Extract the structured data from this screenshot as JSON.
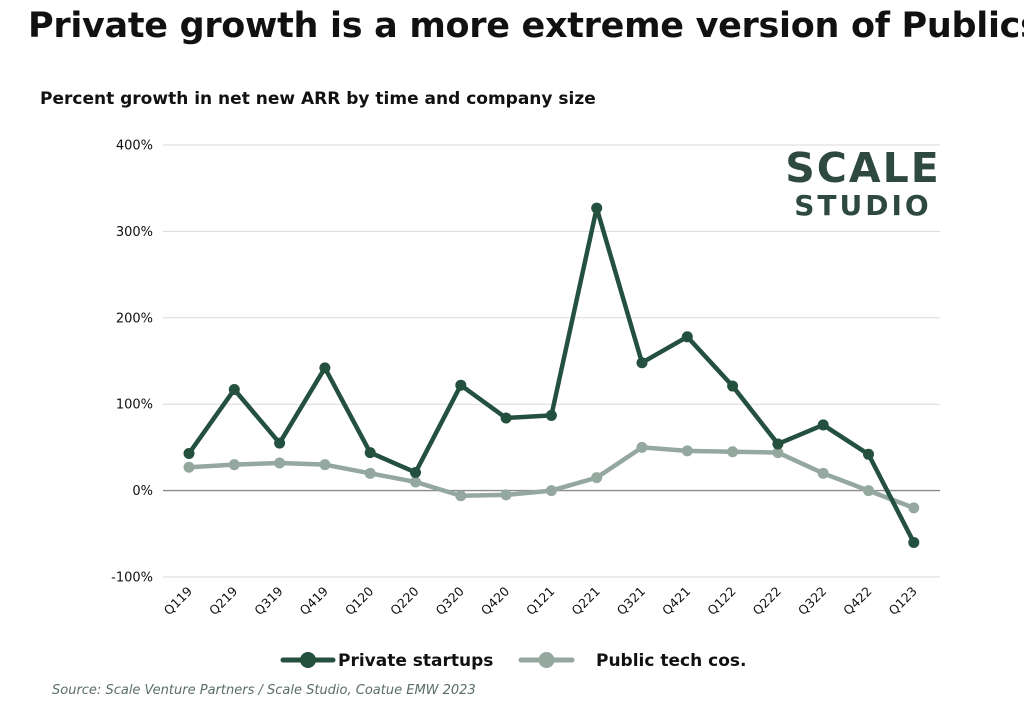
{
  "header": {
    "title": "Private growth is a more extreme version of Publics",
    "subtitle": "Percent growth in net new ARR by time and company size"
  },
  "logo": {
    "line1": "SCALE",
    "line2": "STUDIO"
  },
  "source": "Source: Scale Venture Partners / Scale Studio, Coatue EMW 2023",
  "colors": {
    "private": "#24503f",
    "public": "#94a89f",
    "grid": "#d9d9d9",
    "zero": "#8a8a8a"
  },
  "chart_data": {
    "type": "line",
    "categories": [
      "Q119",
      "Q219",
      "Q319",
      "Q419",
      "Q120",
      "Q220",
      "Q320",
      "Q420",
      "Q121",
      "Q221",
      "Q321",
      "Q421",
      "Q122",
      "Q222",
      "Q322",
      "Q422",
      "Q123"
    ],
    "ylim": [
      -100,
      400
    ],
    "yticks": [
      -100,
      0,
      100,
      200,
      300,
      400
    ],
    "ytick_labels": [
      "-100%",
      "0%",
      "100%",
      "200%",
      "300%",
      "400%"
    ],
    "grid": true,
    "legend_position": "bottom",
    "series": [
      {
        "name": "Private startups",
        "color": "#24503f",
        "values": [
          43,
          117,
          55,
          142,
          44,
          21,
          122,
          84,
          87,
          327,
          148,
          178,
          121,
          54,
          76,
          42,
          -60
        ]
      },
      {
        "name": "Public tech cos.",
        "color": "#94a89f",
        "values": [
          27,
          30,
          32,
          30,
          20,
          10,
          -6,
          -5,
          0,
          15,
          50,
          46,
          45,
          44,
          20,
          0,
          -20
        ]
      }
    ]
  }
}
